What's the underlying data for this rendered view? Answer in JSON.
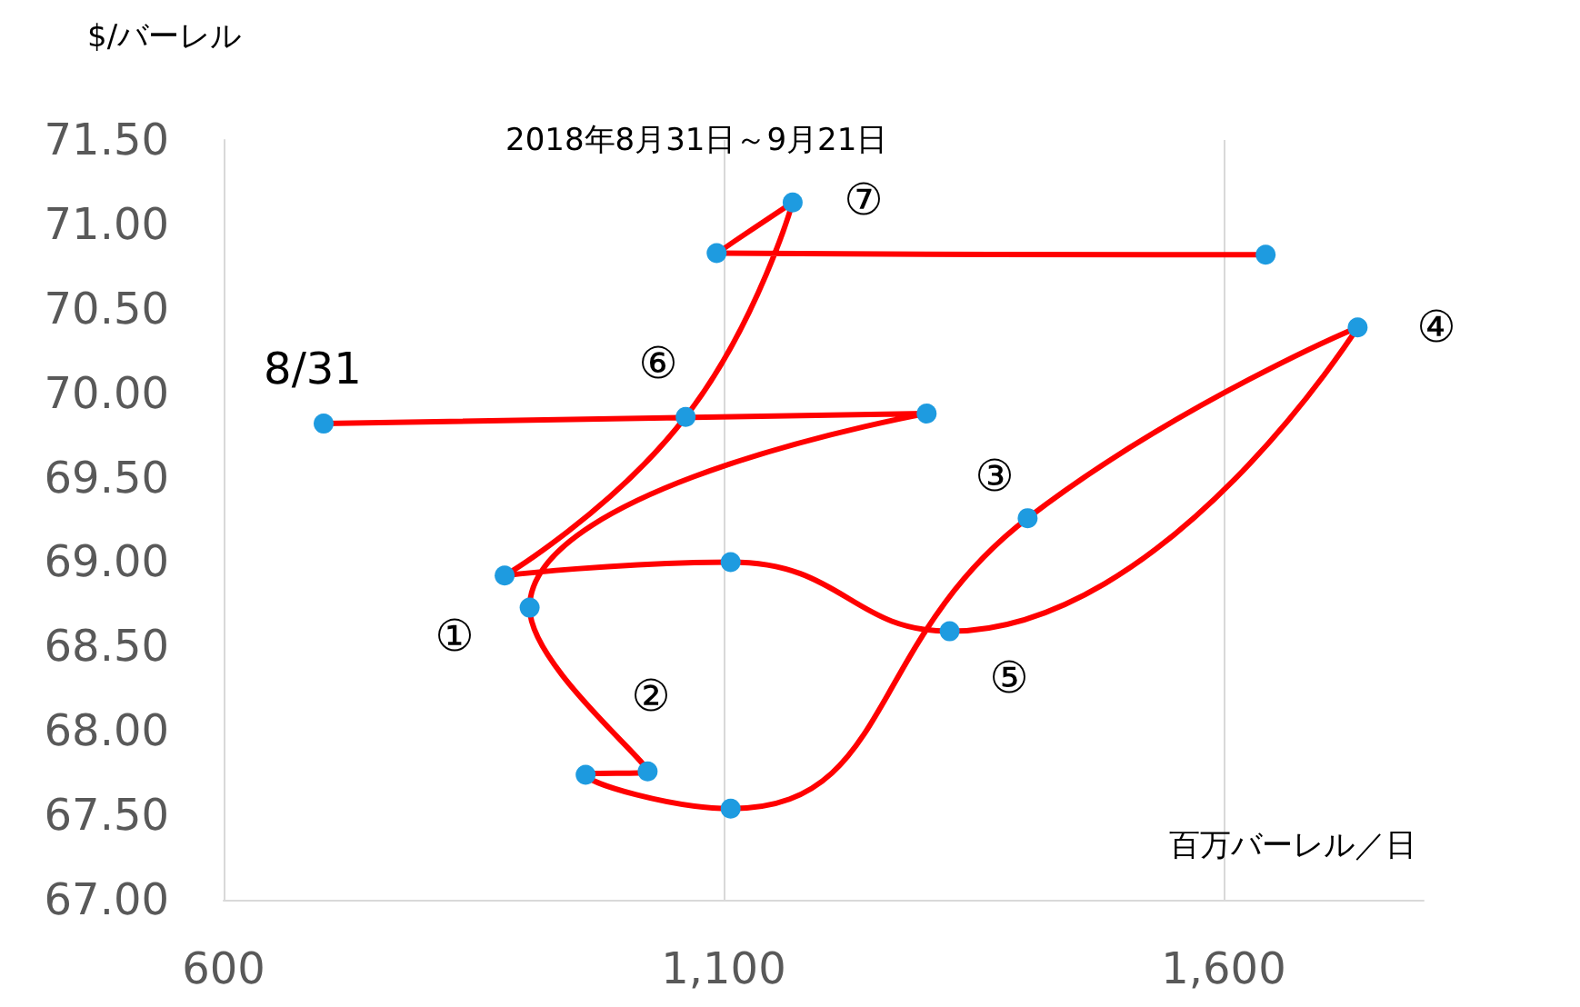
{
  "chart_data": {
    "type": "line",
    "title": "2018年8月31日～9月21日",
    "xlabel": "百万バーレル／日",
    "ylabel": "$/バーレル",
    "series": [
      {
        "color": "#ff0000",
        "x": [
          700,
          1303,
          906,
          1024,
          962,
          1107,
          1404,
          1734,
          1326,
          1107,
          881,
          1062,
          1169,
          1093,
          1642
        ],
        "values": [
          69.82,
          69.88,
          68.73,
          67.76,
          67.74,
          67.54,
          69.26,
          70.39,
          68.59,
          69.0,
          68.92,
          69.86,
          71.13,
          70.83,
          70.82
        ]
      }
    ],
    "marker": "circle",
    "line_style": "solid",
    "grid": "x",
    "xlim": [
      600,
      1800
    ],
    "xticks": [
      {
        "value": 600,
        "label": "600"
      },
      {
        "value": 1100,
        "label": "1,100"
      },
      {
        "value": 1600,
        "label": "1,600"
      }
    ],
    "ylim": [
      67,
      71.5
    ],
    "yticks": [
      {
        "value": 67,
        "label": "67.00"
      },
      {
        "value": 67.5,
        "label": "67.50"
      },
      {
        "value": 68,
        "label": "68.00"
      },
      {
        "value": 68.5,
        "label": "68.50"
      },
      {
        "value": 69,
        "label": "69.00"
      },
      {
        "value": 69.5,
        "label": "69.50"
      },
      {
        "value": 70,
        "label": "70.00"
      },
      {
        "value": 70.5,
        "label": "70.50"
      },
      {
        "value": 71,
        "label": "71.00"
      },
      {
        "value": 71.5,
        "label": "71.50"
      }
    ],
    "annotations": [
      "8/31",
      "①",
      "②",
      "③",
      "④",
      "⑤",
      "⑥",
      "⑦"
    ]
  }
}
